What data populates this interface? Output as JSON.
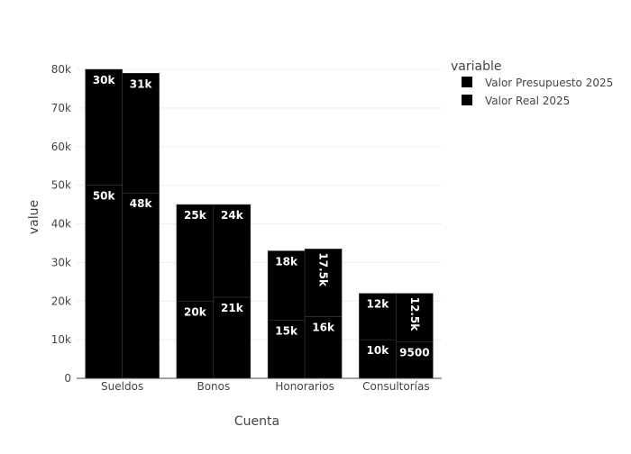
{
  "chart_data": {
    "type": "bar",
    "xlabel": "Cuenta",
    "ylabel": "value",
    "categories": [
      "Sueldos",
      "Bonos",
      "Honorarios",
      "Consultorías"
    ],
    "ylim": [
      0,
      80000
    ],
    "yticks": [
      0,
      10000,
      20000,
      30000,
      40000,
      50000,
      60000,
      70000,
      80000
    ],
    "ytick_labels": [
      "0",
      "10k",
      "20k",
      "30k",
      "40k",
      "50k",
      "60k",
      "70k",
      "80k"
    ],
    "grid": true,
    "legend": {
      "title": "variable",
      "position": "top-right",
      "entries": [
        "Valor Presupuesto 2025",
        "Valor Real 2025"
      ]
    },
    "series": [
      {
        "name": "Valor Presupuesto 2025",
        "color": "#000000",
        "segments": [
          {
            "values": [
              50000,
              20000,
              15000,
              10000
            ],
            "labels": [
              "50k",
              "20k",
              "15k",
              "10k"
            ]
          },
          {
            "values": [
              30000,
              25000,
              18000,
              12000
            ],
            "labels": [
              "30k",
              "25k",
              "18k",
              "12k"
            ]
          }
        ]
      },
      {
        "name": "Valor Real 2025",
        "color": "#000000",
        "segments": [
          {
            "values": [
              48000,
              21000,
              16000,
              9500
            ],
            "labels": [
              "48k",
              "21k",
              "16k",
              "9500"
            ]
          },
          {
            "values": [
              31000,
              24000,
              17500,
              12500
            ],
            "labels": [
              "31k",
              "24k",
              "17.5k",
              "12.5k"
            ]
          }
        ]
      }
    ]
  }
}
